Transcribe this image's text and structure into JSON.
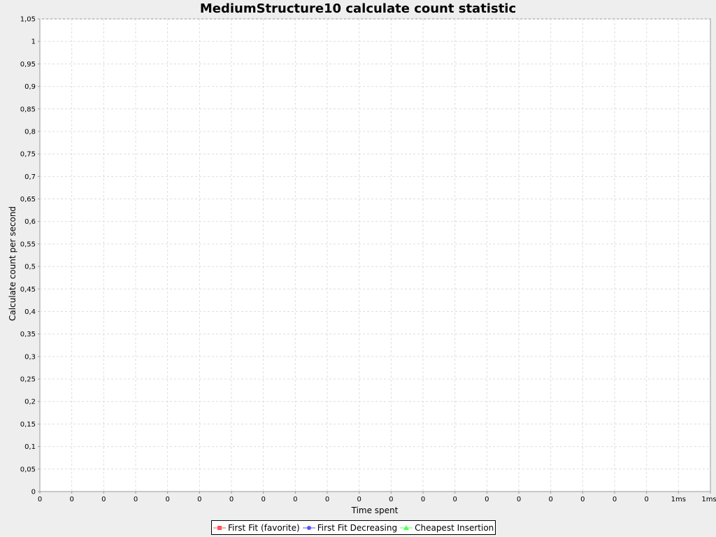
{
  "chart_data": {
    "type": "line",
    "title": "MediumStructure10 calculate count statistic",
    "xlabel": "Time spent",
    "ylabel": "Calculate count per second",
    "ylim": [
      0,
      1.05
    ],
    "y_ticks": [
      "0",
      "0,05",
      "0,1",
      "0,15",
      "0,2",
      "0,25",
      "0,3",
      "0,35",
      "0,4",
      "0,45",
      "0,5",
      "0,55",
      "0,6",
      "0,65",
      "0,7",
      "0,75",
      "0,8",
      "0,85",
      "0,9",
      "0,95",
      "1",
      "1,05"
    ],
    "x_ticks": [
      "0",
      "0",
      "0",
      "0",
      "0",
      "0",
      "0",
      "0",
      "0",
      "0",
      "0",
      "0",
      "0",
      "0",
      "0",
      "0",
      "0",
      "0",
      "0",
      "0",
      "1ms",
      "1ms"
    ],
    "grid": true,
    "legend_position": "bottom",
    "series": [
      {
        "name": "First Fit (favorite)",
        "color": "#ff5555",
        "marker": "square",
        "values": []
      },
      {
        "name": "First Fit Decreasing",
        "color": "#5555ff",
        "marker": "circle",
        "values": []
      },
      {
        "name": "Cheapest Insertion",
        "color": "#55ff55",
        "marker": "triangle",
        "values": []
      }
    ]
  }
}
